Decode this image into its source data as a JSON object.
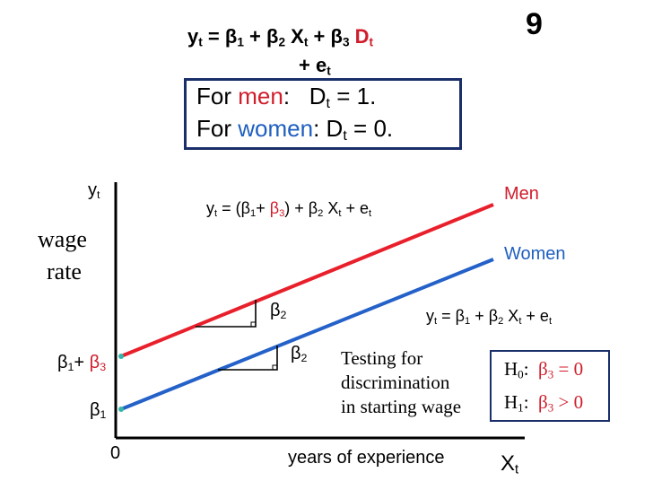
{
  "slide_number": "9",
  "model": {
    "line1": {
      "y": "y",
      "t": "t",
      "eq": "=",
      "b1": "β",
      "b1s": "1",
      "p1": "+",
      "b2": "β",
      "b2s": "2",
      "x": "X",
      "xs": "t",
      "p2": "+",
      "b3": "β",
      "b3s": "3",
      "d": "D",
      "ds": "t"
    },
    "line2": {
      "p": "+",
      "e": "e",
      "es": "t"
    }
  },
  "dummy": {
    "men": {
      "for": "For",
      "group": "men",
      "colon": ":",
      "d": "D",
      "ds": "t",
      "val": "= 1."
    },
    "women": {
      "for": "For",
      "group": "women",
      "colon": ":",
      "d": "D",
      "ds": "t",
      "val": "= 0."
    }
  },
  "axes": {
    "y_label": "y",
    "y_sub": "t",
    "wage": "wage",
    "rate": "rate",
    "x_title": "years of experience",
    "x_label": "X",
    "x_sub": "t",
    "origin": "0"
  },
  "lines": {
    "men_label": "Men",
    "women_label": "Women",
    "men_eq": {
      "y": "y",
      "ys": "t",
      "open": " = (β",
      "b1s": "1",
      "plus": "+ ",
      "b3": "β",
      "b3s": "3",
      "close": ") + β",
      "b2s": "2",
      "x": " X",
      "xs": "t",
      "e": "  + e",
      "es": "t"
    },
    "women_eq": {
      "y": "y",
      "ys": "t",
      "mid": " = β",
      "b1s": "1",
      "plus": " + β",
      "b2s": "2",
      "x": " X",
      "xs": "t",
      "e": "  + e",
      "es": "t"
    }
  },
  "slopes": {
    "upper": {
      "b": "β",
      "s": "2"
    },
    "lower": {
      "b": "β",
      "s": "2"
    }
  },
  "ticks": {
    "b1b3": {
      "b1": "β",
      "b1s": "1",
      "plus": "+ ",
      "b3": "β",
      "b3s": "3"
    },
    "b1": {
      "b": "β",
      "s": "1"
    }
  },
  "testing": {
    "line1": "Testing for",
    "line2": "discrimination",
    "line3": "in starting wage"
  },
  "hypotheses": {
    "h0": {
      "h": "H",
      "hs": "0",
      "colon": ":",
      "b": "β",
      "bs": "3",
      "rel": " = 0"
    },
    "h1": {
      "h": "H",
      "hs": "1",
      "colon": ":",
      "b": "β",
      "bs": "3",
      "rel": " > 0"
    }
  },
  "colors": {
    "men_line": "#e8202c",
    "women_line": "#2461c8",
    "box_border": "#1a2f6a",
    "intercept_dot": "#35b5a8"
  }
}
